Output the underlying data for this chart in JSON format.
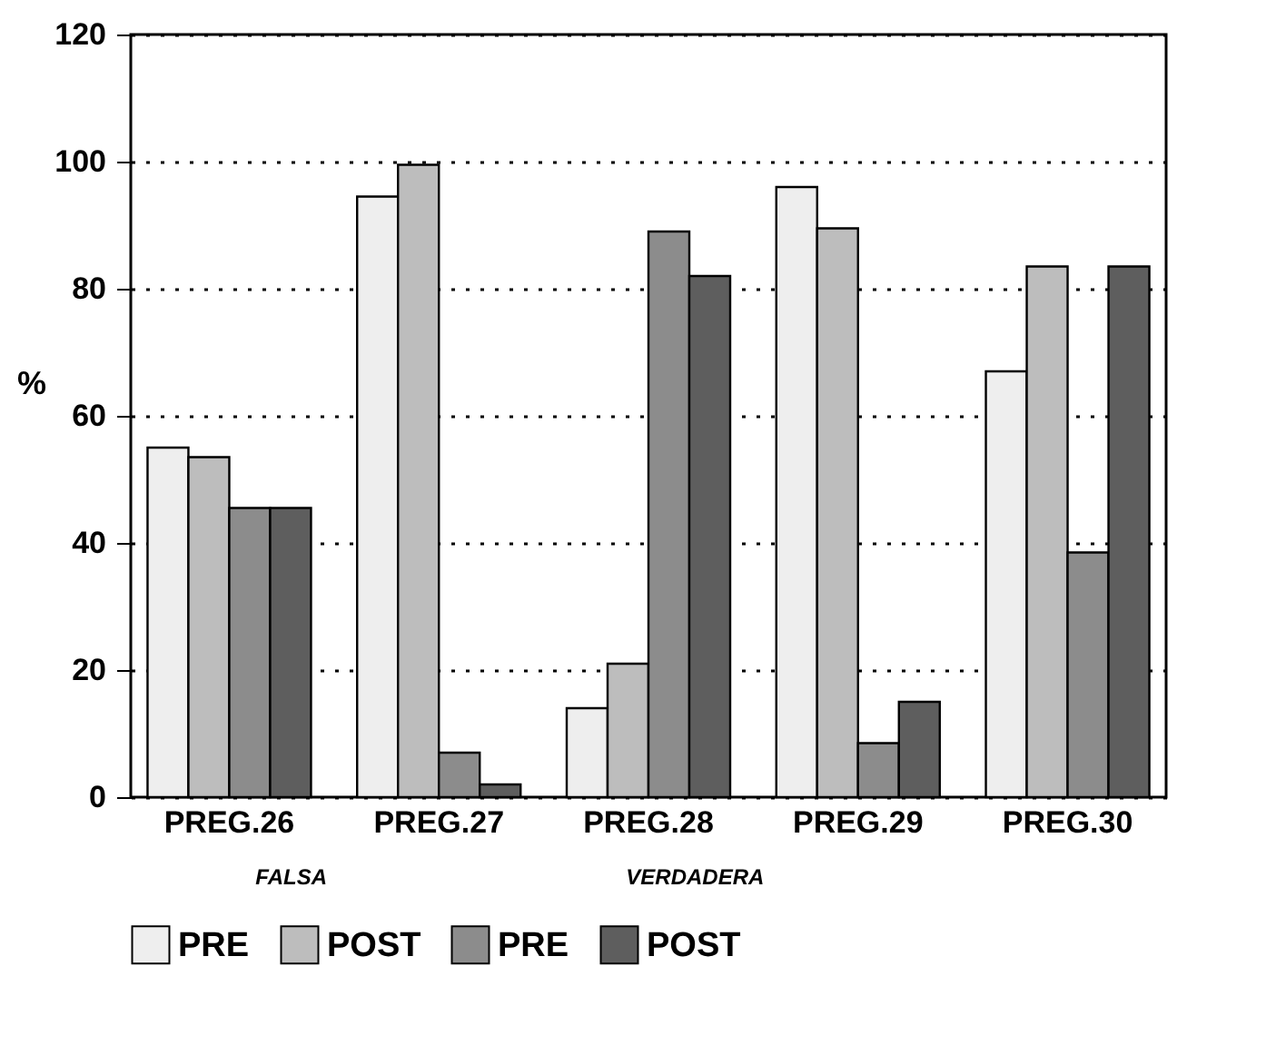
{
  "chart_data": {
    "type": "bar",
    "ylabel": "%",
    "categories": [
      "PREG.26",
      "PREG.27",
      "PREG.28",
      "PREG.29",
      "PREG.30"
    ],
    "series": [
      {
        "name": "PRE",
        "color": "#eeeeee",
        "values": [
          55,
          94.5,
          14,
          96,
          67
        ]
      },
      {
        "name": "POST",
        "color": "#bdbdbd",
        "values": [
          53.5,
          99.5,
          21,
          89.5,
          83.5
        ]
      },
      {
        "name": "PRE",
        "color": "#8c8c8c",
        "values": [
          45.5,
          7,
          89,
          8.5,
          38.5
        ]
      },
      {
        "name": "POST",
        "color": "#5e5e5e",
        "values": [
          45.5,
          2,
          82,
          15,
          83.5
        ]
      }
    ],
    "annotations": [
      "FALSA",
      "VERDADERA"
    ],
    "ylim": [
      0,
      120
    ],
    "yticks": [
      0,
      20,
      40,
      60,
      80,
      100,
      120
    ],
    "grid": "y",
    "legend": "bottom"
  }
}
